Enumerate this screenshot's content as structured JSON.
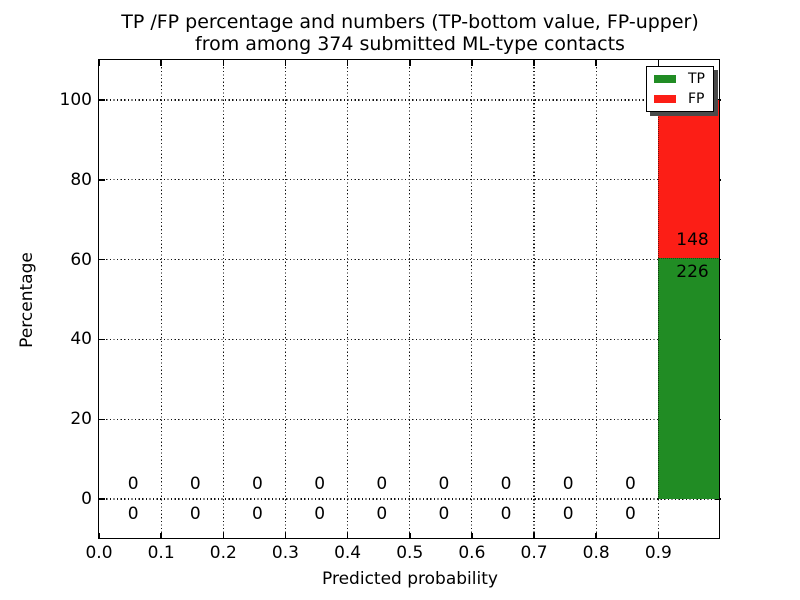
{
  "chart_data": {
    "type": "bar",
    "stacked": true,
    "title_lines": [
      "TP /FP percentage and numbers (TP-bottom value, FP-upper)",
      "from among 374 submitted ML-type contacts"
    ],
    "xlabel": "Predicted probability",
    "ylabel": "Percentage",
    "total_contacts": 374,
    "xlim": [
      0.0,
      1.0
    ],
    "ylim": [
      -10,
      110
    ],
    "grid": "dotted",
    "grid_on": true,
    "xticks": {
      "values": [
        0.0,
        0.1,
        0.2,
        0.3,
        0.4,
        0.5,
        0.6,
        0.7,
        0.8,
        0.9
      ],
      "labels": [
        "0.0",
        "0.1",
        "0.2",
        "0.3",
        "0.4",
        "0.5",
        "0.6",
        "0.7",
        "0.8",
        "0.9"
      ]
    },
    "yticks": {
      "values": [
        0,
        20,
        40,
        60,
        80,
        100
      ],
      "labels": [
        "0",
        "20",
        "40",
        "60",
        "80",
        "100"
      ]
    },
    "series": [
      {
        "name": "TP",
        "color": "#218C24"
      },
      {
        "name": "FP",
        "color": "#FC1E16"
      }
    ],
    "bins": [
      {
        "x0": 0.0,
        "x1": 0.1,
        "tp": 0,
        "fp": 0
      },
      {
        "x0": 0.1,
        "x1": 0.2,
        "tp": 0,
        "fp": 0
      },
      {
        "x0": 0.2,
        "x1": 0.3,
        "tp": 0,
        "fp": 0
      },
      {
        "x0": 0.3,
        "x1": 0.4,
        "tp": 0,
        "fp": 0
      },
      {
        "x0": 0.4,
        "x1": 0.5,
        "tp": 0,
        "fp": 0
      },
      {
        "x0": 0.5,
        "x1": 0.6,
        "tp": 0,
        "fp": 0
      },
      {
        "x0": 0.6,
        "x1": 0.7,
        "tp": 0,
        "fp": 0
      },
      {
        "x0": 0.7,
        "x1": 0.8,
        "tp": 0,
        "fp": 0
      },
      {
        "x0": 0.8,
        "x1": 0.9,
        "tp": 0,
        "fp": 0
      },
      {
        "x0": 0.9,
        "x1": 1.0,
        "tp": 226,
        "fp": 148
      }
    ],
    "legend": {
      "position": "upper-right",
      "shadow": true,
      "entries": [
        {
          "label": "TP",
          "color": "#218C24"
        },
        {
          "label": "FP",
          "color": "#FC1E16"
        }
      ]
    }
  }
}
